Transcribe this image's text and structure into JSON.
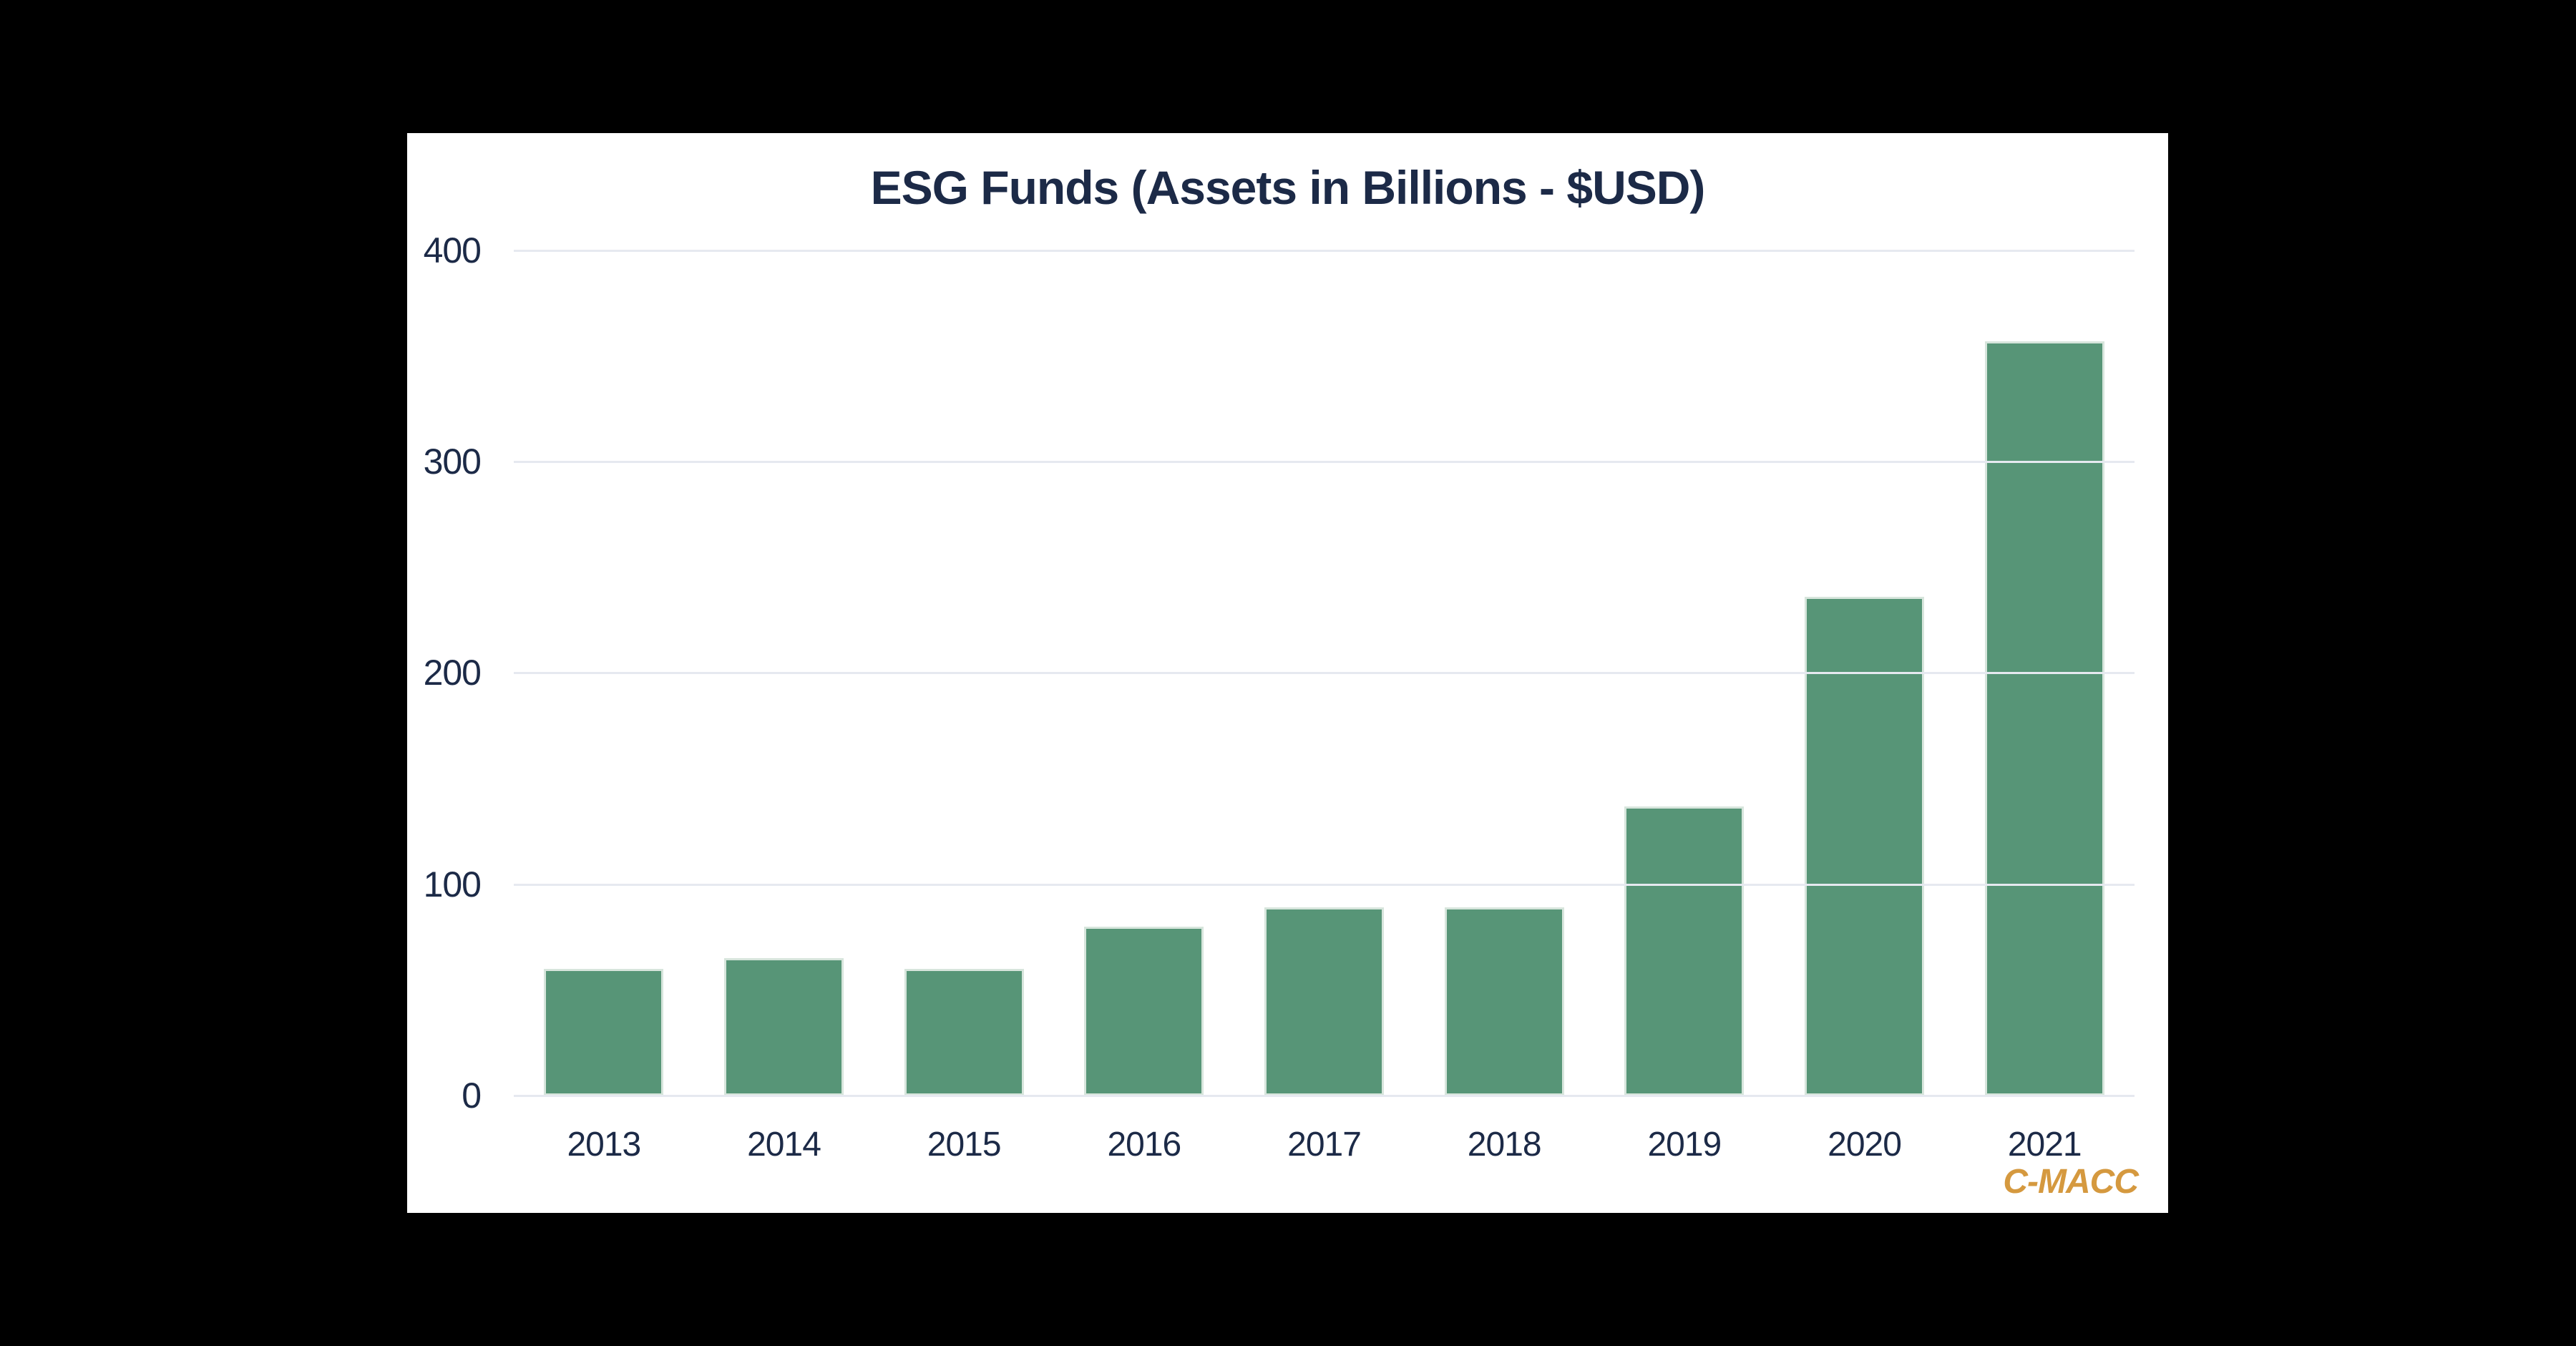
{
  "page": {
    "background_color": "#000000",
    "panel_color": "#FFFFFF",
    "text_color": "#1C2A47",
    "gridline_color": "#E6E9F0"
  },
  "chart_data": {
    "type": "bar",
    "title": "ESG Funds (Assets in Billions - $USD)",
    "categories": [
      "2013",
      "2014",
      "2015",
      "2016",
      "2017",
      "2018",
      "2019",
      "2020",
      "2021"
    ],
    "values": [
      60,
      65,
      60,
      80,
      89,
      89,
      137,
      236,
      357
    ],
    "xlabel": "",
    "ylabel": "",
    "ylim": [
      0,
      400
    ],
    "y_ticks": [
      0,
      100,
      200,
      300,
      400
    ],
    "grid": "horizontal",
    "legend": "none",
    "bar_color": "#579577"
  },
  "branding": {
    "logo_text": "C-MACC",
    "logo_color": "#D5993F"
  }
}
